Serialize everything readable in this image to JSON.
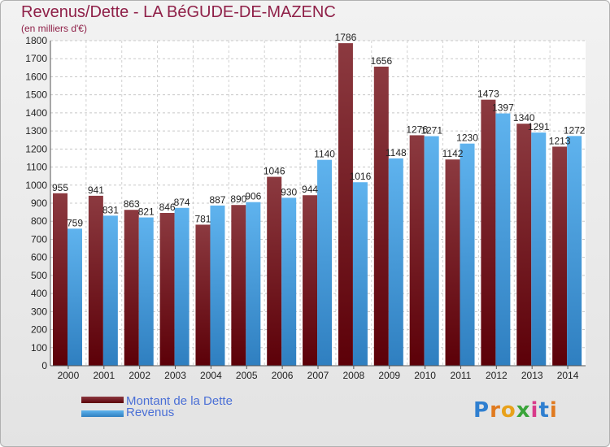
{
  "header": {
    "title": "Revenus/Dette - LA BéGUDE-DE-MAZENC",
    "subtitle": "(en milliers d'€)"
  },
  "legend": {
    "items": [
      {
        "label": "Montant de la Dette",
        "color": "#7a1f26"
      },
      {
        "label": "Revenus",
        "color": "#3d9de0"
      }
    ]
  },
  "logo": {
    "text": "Proxiti",
    "letters": [
      "P",
      "r",
      "o",
      "x",
      "i",
      "t",
      "i"
    ]
  },
  "chart_data": {
    "type": "bar",
    "categories": [
      "2000",
      "2001",
      "2002",
      "2003",
      "2004",
      "2005",
      "2006",
      "2007",
      "2008",
      "2009",
      "2010",
      "2011",
      "2012",
      "2013",
      "2014"
    ],
    "series": [
      {
        "name": "Montant de la Dette",
        "color": "#7a1f26",
        "values": [
          955,
          941,
          863,
          846,
          781,
          890,
          1046,
          944,
          1786,
          1656,
          1276,
          1142,
          1473,
          1340,
          1213
        ]
      },
      {
        "name": "Revenus",
        "color": "#3d9de0",
        "values": [
          759,
          831,
          821,
          874,
          887,
          906,
          930,
          1140,
          1016,
          1148,
          1271,
          1230,
          1397,
          1291,
          1272
        ]
      }
    ],
    "ylim": [
      0,
      1800
    ],
    "ytick_step": 100,
    "grid": true,
    "legend_position": "bottom-left"
  }
}
